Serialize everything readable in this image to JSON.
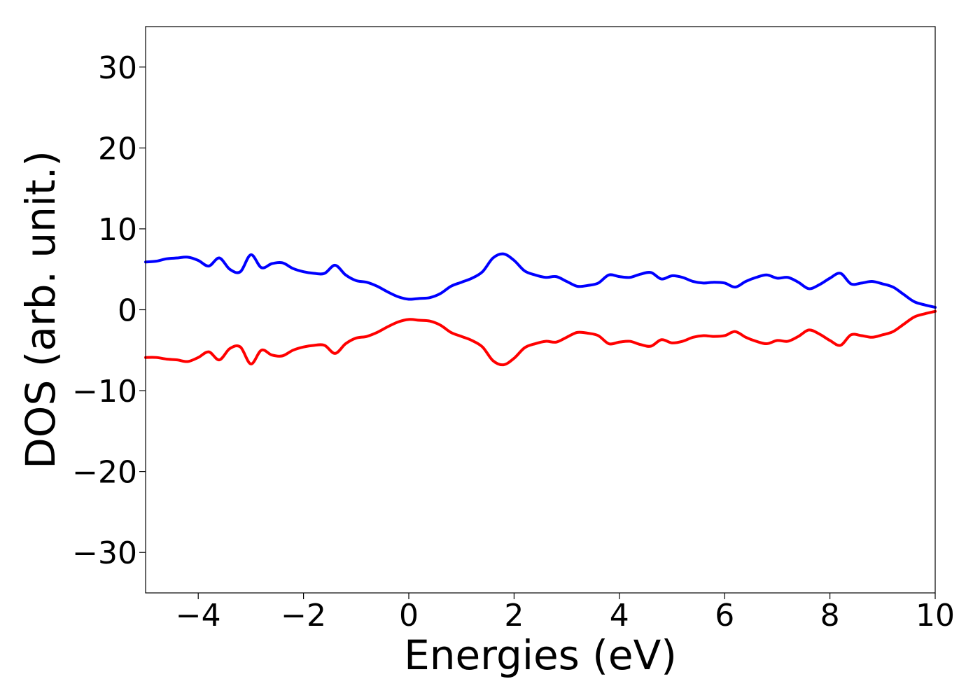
{
  "chart_data": {
    "type": "line",
    "title": "",
    "xlabel": "Energies (eV)",
    "ylabel": "DOS (arb. unit.)",
    "xlim": [
      -5,
      10
    ],
    "ylim": [
      -35,
      35
    ],
    "x_ticks": [
      -4,
      -2,
      0,
      2,
      4,
      6,
      8,
      10
    ],
    "y_ticks": [
      -30,
      -20,
      -10,
      0,
      10,
      20,
      30
    ],
    "x_tick_labels": [
      "−4",
      "−2",
      "0",
      "2",
      "4",
      "6",
      "8",
      "10"
    ],
    "y_tick_labels": [
      "−30",
      "−20",
      "−10",
      "0",
      "10",
      "20",
      "30"
    ],
    "grid": false,
    "legend": "none",
    "series": [
      {
        "color": "#0000ff",
        "x": [
          -5.0,
          -4.8,
          -4.6,
          -4.4,
          -4.2,
          -4.0,
          -3.8,
          -3.6,
          -3.4,
          -3.2,
          -3.0,
          -2.8,
          -2.6,
          -2.4,
          -2.2,
          -2.0,
          -1.8,
          -1.6,
          -1.4,
          -1.2,
          -1.0,
          -0.8,
          -0.6,
          -0.4,
          -0.2,
          0.0,
          0.2,
          0.4,
          0.6,
          0.8,
          1.0,
          1.2,
          1.4,
          1.6,
          1.8,
          2.0,
          2.2,
          2.4,
          2.6,
          2.8,
          3.0,
          3.2,
          3.4,
          3.6,
          3.8,
          4.0,
          4.2,
          4.4,
          4.6,
          4.8,
          5.0,
          5.2,
          5.4,
          5.6,
          5.8,
          6.0,
          6.2,
          6.4,
          6.6,
          6.8,
          7.0,
          7.2,
          7.4,
          7.6,
          7.8,
          8.0,
          8.2,
          8.4,
          8.6,
          8.8,
          9.0,
          9.2,
          9.4,
          9.6,
          9.8,
          10.0
        ],
        "y": [
          5.9,
          6.0,
          6.3,
          6.4,
          6.5,
          6.1,
          5.4,
          6.4,
          5.0,
          4.7,
          6.8,
          5.2,
          5.7,
          5.8,
          5.1,
          4.7,
          4.5,
          4.5,
          5.5,
          4.3,
          3.6,
          3.4,
          2.9,
          2.2,
          1.6,
          1.3,
          1.4,
          1.5,
          2.0,
          2.9,
          3.4,
          3.9,
          4.7,
          6.4,
          6.9,
          6.1,
          4.8,
          4.3,
          4.0,
          4.1,
          3.5,
          2.9,
          3.0,
          3.3,
          4.3,
          4.1,
          4.0,
          4.4,
          4.6,
          3.8,
          4.2,
          4.0,
          3.5,
          3.3,
          3.4,
          3.3,
          2.8,
          3.5,
          4.0,
          4.3,
          3.9,
          4.0,
          3.4,
          2.6,
          3.1,
          3.9,
          4.5,
          3.2,
          3.3,
          3.5,
          3.2,
          2.8,
          1.9,
          1.0,
          0.6,
          0.3
        ]
      },
      {
        "color": "#ff0000",
        "x": [
          -5.0,
          -4.8,
          -4.6,
          -4.4,
          -4.2,
          -4.0,
          -3.8,
          -3.6,
          -3.4,
          -3.2,
          -3.0,
          -2.8,
          -2.6,
          -2.4,
          -2.2,
          -2.0,
          -1.8,
          -1.6,
          -1.4,
          -1.2,
          -1.0,
          -0.8,
          -0.6,
          -0.4,
          -0.2,
          0.0,
          0.2,
          0.4,
          0.6,
          0.8,
          1.0,
          1.2,
          1.4,
          1.6,
          1.8,
          2.0,
          2.2,
          2.4,
          2.6,
          2.8,
          3.0,
          3.2,
          3.4,
          3.6,
          3.8,
          4.0,
          4.2,
          4.4,
          4.6,
          4.8,
          5.0,
          5.2,
          5.4,
          5.6,
          5.8,
          6.0,
          6.2,
          6.4,
          6.6,
          6.8,
          7.0,
          7.2,
          7.4,
          7.6,
          7.8,
          8.0,
          8.2,
          8.4,
          8.6,
          8.8,
          9.0,
          9.2,
          9.4,
          9.6,
          9.8,
          10.0
        ],
        "y": [
          -5.9,
          -5.9,
          -6.1,
          -6.2,
          -6.4,
          -5.9,
          -5.2,
          -6.2,
          -4.8,
          -4.6,
          -6.7,
          -5.0,
          -5.6,
          -5.7,
          -5.0,
          -4.6,
          -4.4,
          -4.4,
          -5.4,
          -4.2,
          -3.5,
          -3.3,
          -2.8,
          -2.1,
          -1.5,
          -1.2,
          -1.3,
          -1.4,
          -1.9,
          -2.8,
          -3.3,
          -3.8,
          -4.6,
          -6.3,
          -6.8,
          -6.0,
          -4.7,
          -4.2,
          -3.9,
          -4.0,
          -3.4,
          -2.8,
          -2.9,
          -3.2,
          -4.2,
          -4.0,
          -3.9,
          -4.3,
          -4.5,
          -3.7,
          -4.1,
          -3.9,
          -3.4,
          -3.2,
          -3.3,
          -3.2,
          -2.7,
          -3.4,
          -3.9,
          -4.2,
          -3.8,
          -3.9,
          -3.3,
          -2.5,
          -3.0,
          -3.8,
          -4.4,
          -3.1,
          -3.2,
          -3.4,
          -3.1,
          -2.7,
          -1.8,
          -0.9,
          -0.5,
          -0.2
        ]
      }
    ]
  }
}
